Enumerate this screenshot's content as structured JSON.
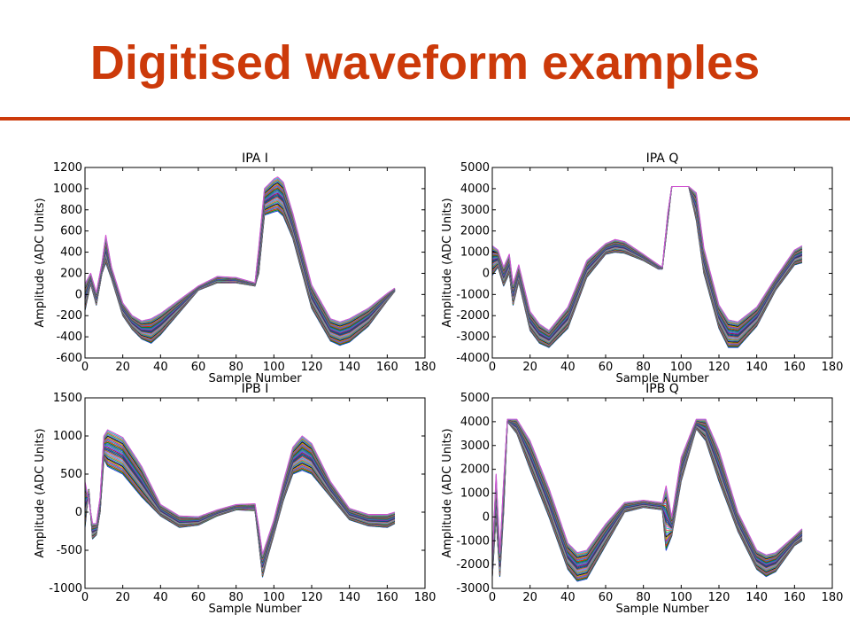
{
  "page": {
    "title": "Digitised waveform examples",
    "accent_color": "#cc3a0a"
  },
  "chart_data": [
    {
      "type": "line",
      "title": "IPA I",
      "xlabel": "Sample Number",
      "ylabel": "Amplitude (ADC Units)",
      "xlim": [
        0,
        180
      ],
      "ylim": [
        -600,
        1200
      ],
      "xticks": [
        0,
        20,
        40,
        60,
        80,
        100,
        120,
        140,
        160,
        180
      ],
      "yticks": [
        -600,
        -400,
        -200,
        0,
        200,
        400,
        600,
        800,
        1000,
        1200
      ],
      "grid": false,
      "series_count": 30,
      "envelope_low": {
        "x": [
          0,
          3,
          6,
          9,
          11,
          14,
          20,
          25,
          30,
          35,
          40,
          50,
          60,
          70,
          80,
          90,
          92,
          95,
          100,
          102,
          105,
          110,
          120,
          130,
          135,
          140,
          150,
          160,
          164
        ],
        "y": [
          -150,
          100,
          -100,
          200,
          300,
          150,
          -200,
          -330,
          -420,
          -460,
          -380,
          -170,
          40,
          110,
          110,
          80,
          200,
          750,
          780,
          790,
          740,
          530,
          -130,
          -440,
          -480,
          -450,
          -300,
          -60,
          30
        ]
      },
      "envelope_high": {
        "x": [
          0,
          3,
          6,
          9,
          11,
          14,
          20,
          25,
          30,
          35,
          40,
          50,
          60,
          70,
          80,
          90,
          92,
          95,
          100,
          102,
          105,
          110,
          120,
          130,
          135,
          140,
          150,
          160,
          164
        ],
        "y": [
          100,
          200,
          20,
          300,
          560,
          260,
          -80,
          -200,
          -250,
          -230,
          -180,
          -50,
          80,
          170,
          160,
          110,
          450,
          1000,
          1090,
          1110,
          1060,
          770,
          90,
          -230,
          -260,
          -230,
          -130,
          10,
          60
        ]
      }
    },
    {
      "type": "line",
      "title": "IPA Q",
      "xlabel": "Sample Number",
      "ylabel": "Amplitude (ADC Units)",
      "xlim": [
        0,
        180
      ],
      "ylim": [
        -4000,
        5000
      ],
      "xticks": [
        0,
        20,
        40,
        60,
        80,
        100,
        120,
        140,
        160,
        180
      ],
      "yticks": [
        -4000,
        -3000,
        -2000,
        -1000,
        0,
        1000,
        2000,
        3000,
        4000,
        5000
      ],
      "grid": false,
      "series_count": 30,
      "envelope_low": {
        "x": [
          0,
          3,
          6,
          9,
          11,
          14,
          20,
          25,
          30,
          40,
          50,
          60,
          65,
          70,
          80,
          88,
          90,
          93,
          95,
          104,
          108,
          112,
          120,
          125,
          130,
          140,
          150,
          160,
          164
        ],
        "y": [
          -100,
          300,
          -600,
          0,
          -1500,
          -400,
          -2700,
          -3300,
          -3500,
          -2600,
          -200,
          900,
          1000,
          950,
          600,
          200,
          200,
          2500,
          4100,
          4100,
          2500,
          0,
          -2600,
          -3500,
          -3500,
          -2500,
          -800,
          400,
          500
        ]
      },
      "envelope_high": {
        "x": [
          0,
          3,
          6,
          9,
          11,
          14,
          20,
          25,
          30,
          40,
          50,
          60,
          65,
          70,
          80,
          88,
          90,
          93,
          95,
          104,
          108,
          112,
          120,
          125,
          130,
          140,
          150,
          160,
          164
        ],
        "y": [
          1300,
          1100,
          300,
          900,
          -500,
          400,
          -1800,
          -2400,
          -2700,
          -1600,
          600,
          1400,
          1600,
          1500,
          900,
          400,
          300,
          2900,
          4100,
          4100,
          3800,
          1200,
          -1500,
          -2200,
          -2300,
          -1600,
          -200,
          1100,
          1300
        ]
      }
    },
    {
      "type": "line",
      "title": "IPB I",
      "xlabel": "Sample Number",
      "ylabel": "Amplitude (ADC Units)",
      "xlim": [
        0,
        180
      ],
      "ylim": [
        -1000,
        1500
      ],
      "xticks": [
        0,
        20,
        40,
        60,
        80,
        100,
        120,
        140,
        160,
        180
      ],
      "yticks": [
        -1000,
        -500,
        0,
        500,
        1000,
        1500
      ],
      "grid": false,
      "series_count": 30,
      "envelope_low": {
        "x": [
          0,
          2,
          4,
          6,
          8,
          10,
          12,
          20,
          30,
          40,
          50,
          60,
          70,
          80,
          90,
          92,
          94,
          96,
          100,
          105,
          110,
          115,
          120,
          130,
          140,
          150,
          160,
          164
        ],
        "y": [
          -200,
          300,
          -350,
          -300,
          0,
          700,
          600,
          500,
          200,
          -50,
          -200,
          -170,
          -50,
          30,
          20,
          -400,
          -850,
          -650,
          -300,
          150,
          500,
          550,
          500,
          200,
          -100,
          -180,
          -200,
          -150
        ]
      },
      "envelope_high": {
        "x": [
          0,
          2,
          4,
          6,
          8,
          10,
          12,
          20,
          30,
          40,
          50,
          60,
          70,
          80,
          90,
          92,
          94,
          96,
          100,
          105,
          110,
          115,
          120,
          130,
          140,
          150,
          160,
          164
        ],
        "y": [
          400,
          150,
          -150,
          -150,
          200,
          1000,
          1080,
          980,
          600,
          100,
          -50,
          -60,
          30,
          100,
          110,
          -200,
          -550,
          -400,
          -100,
          400,
          850,
          1000,
          900,
          400,
          50,
          -30,
          -30,
          0
        ]
      }
    },
    {
      "type": "line",
      "title": "IPB Q",
      "xlabel": "Sample Number",
      "ylabel": "Amplitude (ADC Units)",
      "xlim": [
        0,
        180
      ],
      "ylim": [
        -3000,
        5000
      ],
      "xticks": [
        0,
        20,
        40,
        60,
        80,
        100,
        120,
        140,
        160,
        180
      ],
      "yticks": [
        -3000,
        -2000,
        -1000,
        0,
        1000,
        2000,
        3000,
        4000,
        5000
      ],
      "grid": false,
      "series_count": 30,
      "envelope_low": {
        "x": [
          0,
          2,
          4,
          6,
          8,
          13,
          20,
          30,
          40,
          45,
          50,
          60,
          70,
          80,
          90,
          92,
          95,
          100,
          108,
          113,
          120,
          130,
          140,
          145,
          150,
          160,
          164
        ],
        "y": [
          -2500,
          0,
          -2500,
          200,
          4000,
          3500,
          2000,
          0,
          -2200,
          -2700,
          -2600,
          -1200,
          200,
          400,
          300,
          -1400,
          -800,
          1500,
          3700,
          3200,
          1500,
          -600,
          -2200,
          -2500,
          -2300,
          -1200,
          -1000
        ]
      },
      "envelope_high": {
        "x": [
          0,
          2,
          4,
          6,
          8,
          13,
          20,
          30,
          40,
          45,
          50,
          60,
          70,
          80,
          90,
          92,
          95,
          100,
          108,
          113,
          120,
          130,
          140,
          145,
          150,
          160,
          164
        ],
        "y": [
          -1800,
          1800,
          -1500,
          1500,
          4100,
          4100,
          3200,
          1200,
          -1100,
          -1500,
          -1400,
          -300,
          600,
          700,
          600,
          1300,
          0,
          2500,
          4100,
          4100,
          2800,
          200,
          -1400,
          -1600,
          -1500,
          -800,
          -500
        ]
      }
    }
  ]
}
